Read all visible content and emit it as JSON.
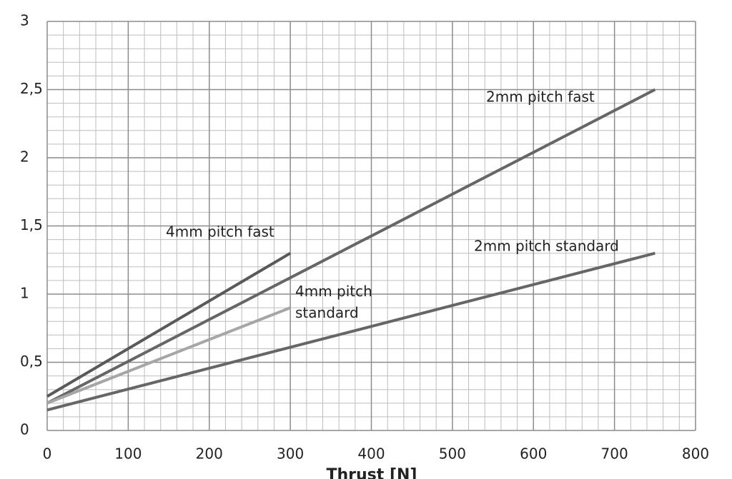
{
  "chart_data": {
    "type": "line",
    "xlabel": "Thrust [N]",
    "series": [
      {
        "name": "4mm pitch fast",
        "color": "#595959",
        "x": [
          0,
          300
        ],
        "values": [
          0.25,
          1.3
        ]
      },
      {
        "name": "2mm pitch fast",
        "color": "#666666",
        "x": [
          0,
          750
        ],
        "values": [
          0.2,
          2.5
        ]
      },
      {
        "name": "4mm pitch standard",
        "color": "#a6a6a6",
        "x": [
          0,
          300
        ],
        "values": [
          0.2,
          0.9
        ]
      },
      {
        "name": "2mm pitch standard",
        "color": "#666666",
        "x": [
          0,
          750
        ],
        "values": [
          0.15,
          1.3
        ]
      }
    ],
    "xlim": [
      0,
      800
    ],
    "xticks": [
      0,
      100,
      200,
      300,
      400,
      500,
      600,
      700,
      800
    ],
    "ylim": [
      0,
      3
    ],
    "yticks": [
      0,
      {
        "value": 0.5,
        "label": "0,5"
      },
      1,
      {
        "value": 1.5,
        "label": "1,5"
      },
      2,
      {
        "value": 2.5,
        "label": "2,5"
      },
      3
    ],
    "grid": true
  }
}
